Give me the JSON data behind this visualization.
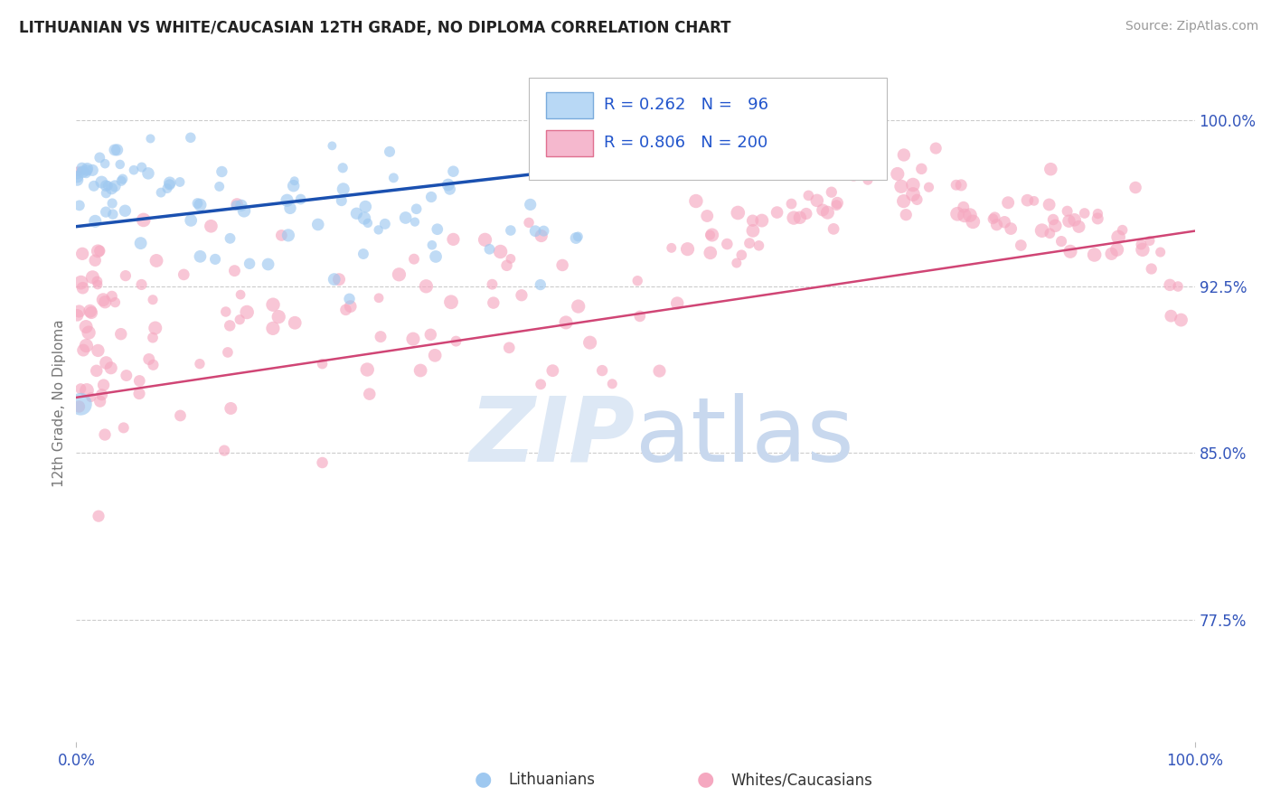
{
  "title": "LITHUANIAN VS WHITE/CAUCASIAN 12TH GRADE, NO DIPLOMA CORRELATION CHART",
  "source_text": "Source: ZipAtlas.com",
  "ylabel": "12th Grade, No Diploma",
  "xlim": [
    0.0,
    1.0
  ],
  "ylim": [
    0.72,
    1.025
  ],
  "yticks": [
    0.775,
    0.85,
    0.925,
    1.0
  ],
  "ytick_labels": [
    "77.5%",
    "85.0%",
    "92.5%",
    "100.0%"
  ],
  "xtick_labels": [
    "0.0%",
    "100.0%"
  ],
  "blue_scatter_color": "#9ec8f0",
  "pink_scatter_color": "#f5a8c0",
  "blue_line_color": "#1a50b0",
  "pink_line_color": "#d04575",
  "grid_color": "#cccccc",
  "background_color": "#ffffff",
  "title_color": "#222222",
  "tick_label_color": "#3355bb",
  "legend_patch_blue": "#b8d8f5",
  "legend_patch_pink": "#f5b8ce",
  "legend_border_blue": "#7aabdc",
  "legend_border_pink": "#e07090",
  "watermark_color": "#dde8f5",
  "blue_line_x0": 0.0,
  "blue_line_x1": 0.45,
  "blue_line_y0": 0.952,
  "blue_line_y1": 0.978,
  "pink_line_x0": 0.0,
  "pink_line_x1": 1.0,
  "pink_line_y0": 0.875,
  "pink_line_y1": 0.95
}
